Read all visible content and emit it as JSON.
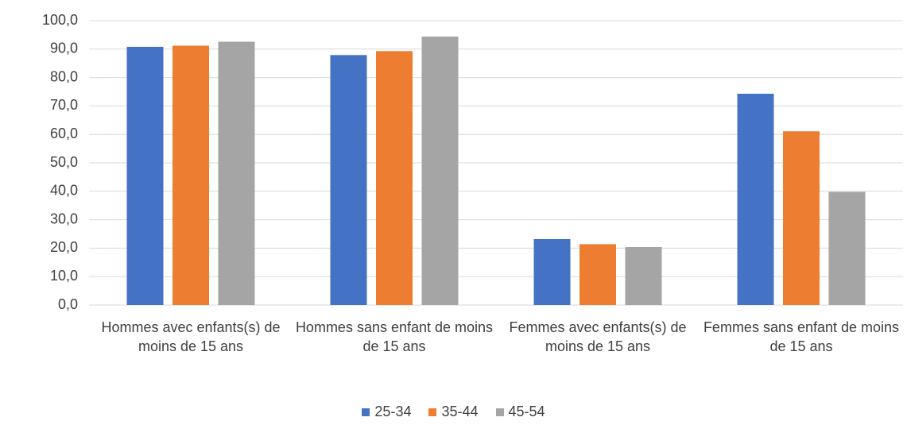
{
  "chart_data": {
    "type": "bar",
    "categories": [
      "Hommes avec enfants(s) de moins de 15 ans",
      "Hommes sans enfant de moins de 15 ans",
      "Femmes avec enfants(s) de moins de 15 ans",
      "Femmes sans enfant de moins de 15 ans"
    ],
    "series": [
      {
        "name": "25-34",
        "color": "#4472c4",
        "values": [
          90.8,
          87.9,
          23.2,
          74.3
        ]
      },
      {
        "name": "35-44",
        "color": "#ed7d31",
        "values": [
          91.2,
          89.3,
          21.4,
          61.1
        ]
      },
      {
        "name": "45-54",
        "color": "#a5a5a5",
        "values": [
          92.6,
          94.4,
          20.4,
          39.8
        ]
      }
    ],
    "ylim": [
      0,
      100
    ],
    "yticks": [
      {
        "value": 0,
        "label": "0,0"
      },
      {
        "value": 10,
        "label": "10,0"
      },
      {
        "value": 20,
        "label": "20,0"
      },
      {
        "value": 30,
        "label": "30,0"
      },
      {
        "value": 40,
        "label": "40,0"
      },
      {
        "value": 50,
        "label": "50,0"
      },
      {
        "value": 60,
        "label": "60,0"
      },
      {
        "value": 70,
        "label": "70,0"
      },
      {
        "value": 80,
        "label": "80,0"
      },
      {
        "value": 90,
        "label": "90,0"
      },
      {
        "value": 100,
        "label": "100,0"
      }
    ],
    "grid": true,
    "legend": "bottom"
  }
}
